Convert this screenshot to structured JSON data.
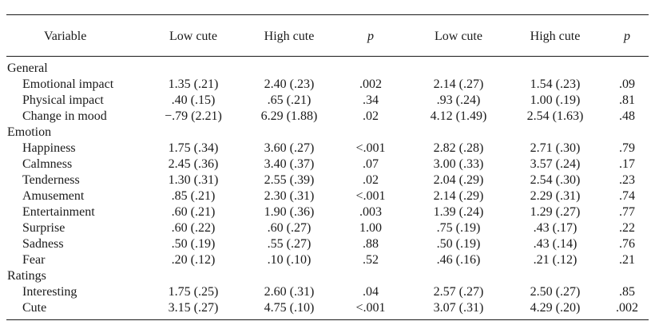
{
  "headers": {
    "variable": "Variable",
    "low_cute_1": "Low cute",
    "high_cute_1": "High cute",
    "p_1": "p",
    "low_cute_2": "Low cute",
    "high_cute_2": "High cute",
    "p_2": "p"
  },
  "sections": [
    {
      "title": "General",
      "rows": [
        {
          "label": "Emotional impact",
          "v": [
            "1.35 (.21)",
            "2.40 (.23)",
            ".002",
            "2.14 (.27)",
            "1.54 (.23)",
            ".09"
          ]
        },
        {
          "label": "Physical impact",
          "v": [
            ".40 (.15)",
            ".65 (.21)",
            ".34",
            ".93 (.24)",
            "1.00 (.19)",
            ".81"
          ]
        },
        {
          "label": "Change in mood",
          "v": [
            "−.79 (2.21)",
            "6.29 (1.88)",
            ".02",
            "4.12 (1.49)",
            "2.54 (1.63)",
            ".48"
          ]
        }
      ]
    },
    {
      "title": "Emotion",
      "rows": [
        {
          "label": "Happiness",
          "v": [
            "1.75 (.34)",
            "3.60 (.27)",
            "<.001",
            "2.82 (.28)",
            "2.71 (.30)",
            ".79"
          ]
        },
        {
          "label": "Calmness",
          "v": [
            "2.45 (.36)",
            "3.40 (.37)",
            ".07",
            "3.00 (.33)",
            "3.57 (.24)",
            ".17"
          ]
        },
        {
          "label": "Tenderness",
          "v": [
            "1.30 (.31)",
            "2.55 (.39)",
            ".02",
            "2.04 (.29)",
            "2.54 (.30)",
            ".23"
          ]
        },
        {
          "label": "Amusement",
          "v": [
            ".85 (.21)",
            "2.30 (.31)",
            "<.001",
            "2.14 (.29)",
            "2.29 (.31)",
            ".74"
          ]
        },
        {
          "label": "Entertainment",
          "v": [
            ".60 (.21)",
            "1.90 (.36)",
            ".003",
            "1.39 (.24)",
            "1.29 (.27)",
            ".77"
          ]
        },
        {
          "label": "Surprise",
          "v": [
            ".60 (.22)",
            ".60 (.27)",
            "1.00",
            ".75 (.19)",
            ".43 (.17)",
            ".22"
          ]
        },
        {
          "label": "Sadness",
          "v": [
            ".50 (.19)",
            ".55 (.27)",
            ".88",
            ".50 (.19)",
            ".43 (.14)",
            ".76"
          ]
        },
        {
          "label": "Fear",
          "v": [
            ".20 (.12)",
            ".10 (.10)",
            ".52",
            ".46 (.16)",
            ".21 (.12)",
            ".21"
          ]
        }
      ]
    },
    {
      "title": "Ratings",
      "rows": [
        {
          "label": "Interesting",
          "v": [
            "1.75 (.25)",
            "2.60 (.31)",
            ".04",
            "2.57 (.27)",
            "2.50 (.27)",
            ".85"
          ]
        },
        {
          "label": "Cute",
          "v": [
            "3.15 (.27)",
            "4.75 (.10)",
            "<.001",
            "3.07 (.31)",
            "4.29 (.20)",
            ".002"
          ]
        }
      ]
    }
  ]
}
